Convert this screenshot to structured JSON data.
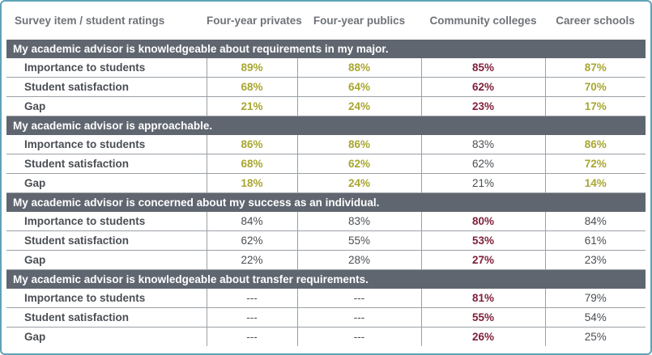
{
  "colors": {
    "border": "#5fa3b8",
    "section_bg": "#5f6670",
    "header_text": "#6f7378",
    "green": "#a9a630",
    "maroon": "#7f1f3a",
    "gray": "#4a4e53"
  },
  "header": {
    "item": "Survey item / student ratings",
    "four_year_privates": "Four-year privates",
    "four_year_publics": "Four-year publics",
    "community_colleges": "Community colleges",
    "career_schools": "Career schools"
  },
  "sections": [
    {
      "title": "My academic advisor is knowledgeable about requirements in my major.",
      "rows": [
        {
          "label": "Importance to students",
          "cells": [
            {
              "v": "89%",
              "c": "green"
            },
            {
              "v": "88%",
              "c": "green"
            },
            {
              "v": "85%",
              "c": "maroon"
            },
            {
              "v": "87%",
              "c": "green"
            }
          ]
        },
        {
          "label": "Student satisfaction",
          "cells": [
            {
              "v": "68%",
              "c": "green"
            },
            {
              "v": "64%",
              "c": "green"
            },
            {
              "v": "62%",
              "c": "maroon"
            },
            {
              "v": "70%",
              "c": "green"
            }
          ]
        },
        {
          "label": "Gap",
          "cells": [
            {
              "v": "21%",
              "c": "green"
            },
            {
              "v": "24%",
              "c": "green"
            },
            {
              "v": "23%",
              "c": "maroon"
            },
            {
              "v": "17%",
              "c": "green"
            }
          ]
        }
      ]
    },
    {
      "title": "My academic advisor is approachable.",
      "rows": [
        {
          "label": "Importance to students",
          "cells": [
            {
              "v": "86%",
              "c": "green"
            },
            {
              "v": "86%",
              "c": "green"
            },
            {
              "v": "83%",
              "c": "gray"
            },
            {
              "v": "86%",
              "c": "green"
            }
          ]
        },
        {
          "label": "Student satisfaction",
          "cells": [
            {
              "v": "68%",
              "c": "green"
            },
            {
              "v": "62%",
              "c": "green"
            },
            {
              "v": "62%",
              "c": "gray"
            },
            {
              "v": "72%",
              "c": "green"
            }
          ]
        },
        {
          "label": "Gap",
          "cells": [
            {
              "v": "18%",
              "c": "green"
            },
            {
              "v": "24%",
              "c": "green"
            },
            {
              "v": "21%",
              "c": "gray"
            },
            {
              "v": "14%",
              "c": "green"
            }
          ]
        }
      ]
    },
    {
      "title": "My academic advisor is concerned about my success as an individual.",
      "rows": [
        {
          "label": "Importance to students",
          "cells": [
            {
              "v": "84%",
              "c": "gray"
            },
            {
              "v": "83%",
              "c": "gray"
            },
            {
              "v": "80%",
              "c": "maroon"
            },
            {
              "v": "84%",
              "c": "gray"
            }
          ]
        },
        {
          "label": "Student satisfaction",
          "cells": [
            {
              "v": "62%",
              "c": "gray"
            },
            {
              "v": "55%",
              "c": "gray"
            },
            {
              "v": "53%",
              "c": "maroon"
            },
            {
              "v": "61%",
              "c": "gray"
            }
          ]
        },
        {
          "label": "Gap",
          "cells": [
            {
              "v": "22%",
              "c": "gray"
            },
            {
              "v": "28%",
              "c": "gray"
            },
            {
              "v": "27%",
              "c": "maroon"
            },
            {
              "v": "23%",
              "c": "gray"
            }
          ]
        }
      ]
    },
    {
      "title": "My academic advisor is knowledgeable about transfer requirements.",
      "rows": [
        {
          "label": "Importance to students",
          "cells": [
            {
              "v": "---",
              "c": "gray"
            },
            {
              "v": "---",
              "c": "gray"
            },
            {
              "v": "81%",
              "c": "maroon"
            },
            {
              "v": "79%",
              "c": "gray"
            }
          ]
        },
        {
          "label": "Student satisfaction",
          "cells": [
            {
              "v": "---",
              "c": "gray"
            },
            {
              "v": "---",
              "c": "gray"
            },
            {
              "v": "55%",
              "c": "maroon"
            },
            {
              "v": "54%",
              "c": "gray"
            }
          ]
        },
        {
          "label": "Gap",
          "cells": [
            {
              "v": "---",
              "c": "gray"
            },
            {
              "v": "---",
              "c": "gray"
            },
            {
              "v": "26%",
              "c": "maroon"
            },
            {
              "v": "25%",
              "c": "gray"
            }
          ]
        }
      ]
    }
  ]
}
